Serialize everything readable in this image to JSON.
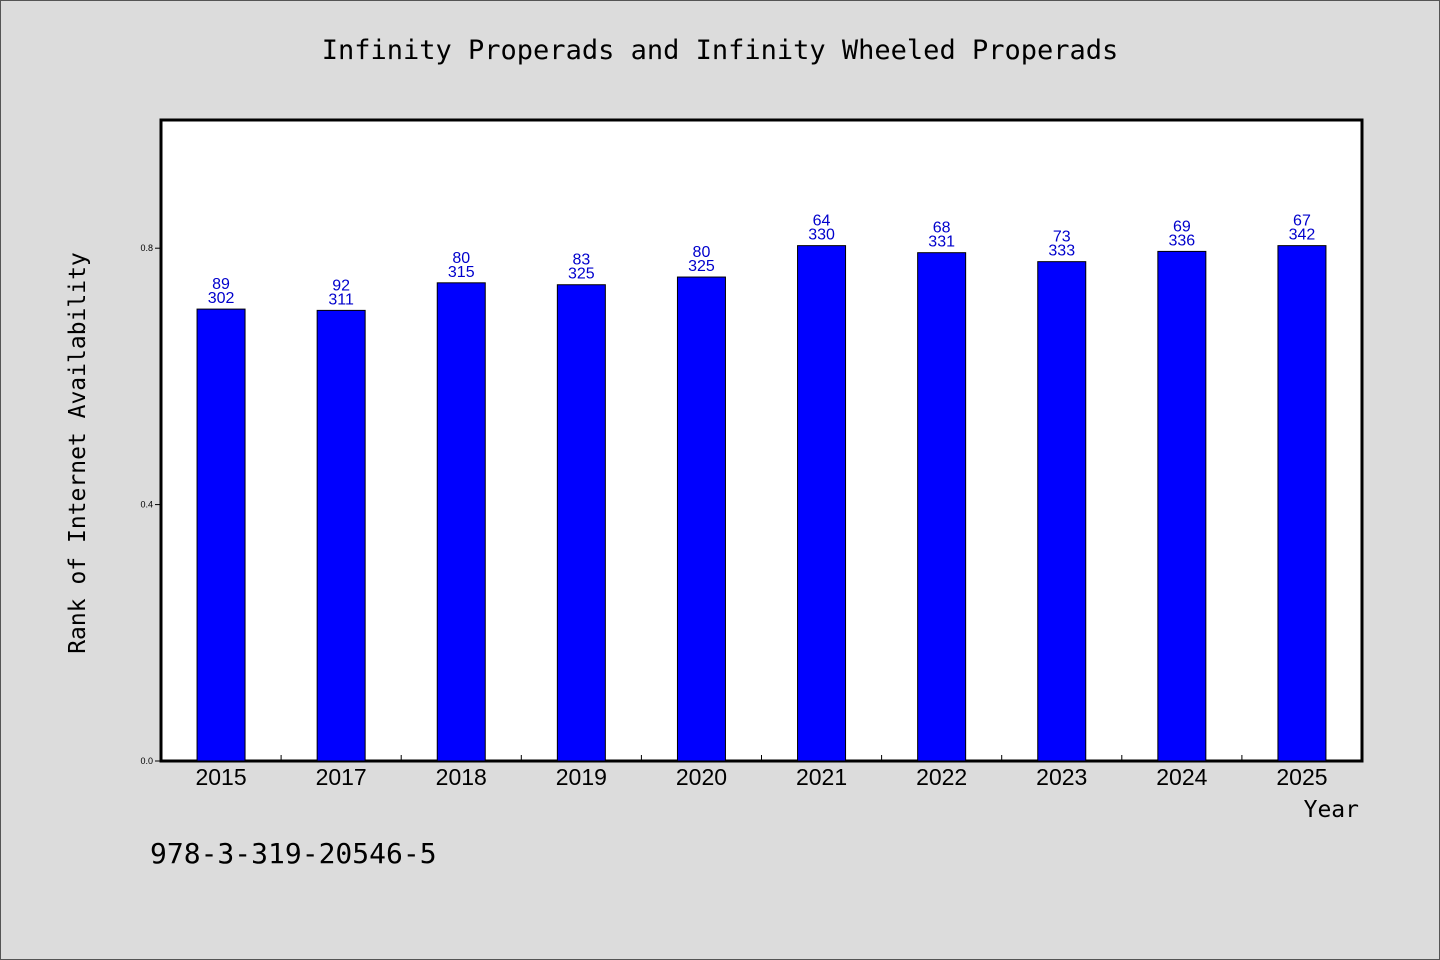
{
  "figure": {
    "title": "Infinity Properads and Infinity Wheeled Properads",
    "footer_code": "978-3-319-20546-5",
    "background": "#dcdcdc"
  },
  "chart_data": {
    "type": "bar",
    "title": "Infinity Properads and Infinity Wheeled Properads",
    "xlabel": "Year",
    "ylabel": "Rank of Internet Availability",
    "categories": [
      "2015",
      "2017",
      "2018",
      "2019",
      "2020",
      "2021",
      "2022",
      "2023",
      "2024",
      "2025"
    ],
    "values": [
      0.705,
      0.703,
      0.746,
      0.743,
      0.755,
      0.804,
      0.793,
      0.779,
      0.795,
      0.804
    ],
    "labels_top": [
      "89",
      "92",
      "80",
      "83",
      "80",
      "64",
      "68",
      "73",
      "69",
      "67"
    ],
    "labels_bottom": [
      "302",
      "311",
      "315",
      "325",
      "325",
      "330",
      "331",
      "333",
      "336",
      "342"
    ],
    "yticks": [
      "0.0",
      "0.4",
      "0.8"
    ],
    "ylim": [
      0,
      1.0
    ],
    "grid": false,
    "colors": {
      "bar": "#0000ff",
      "bar_edge": "#000000",
      "data_label": "#0000cc",
      "plot_bg": "#ffffff"
    }
  }
}
